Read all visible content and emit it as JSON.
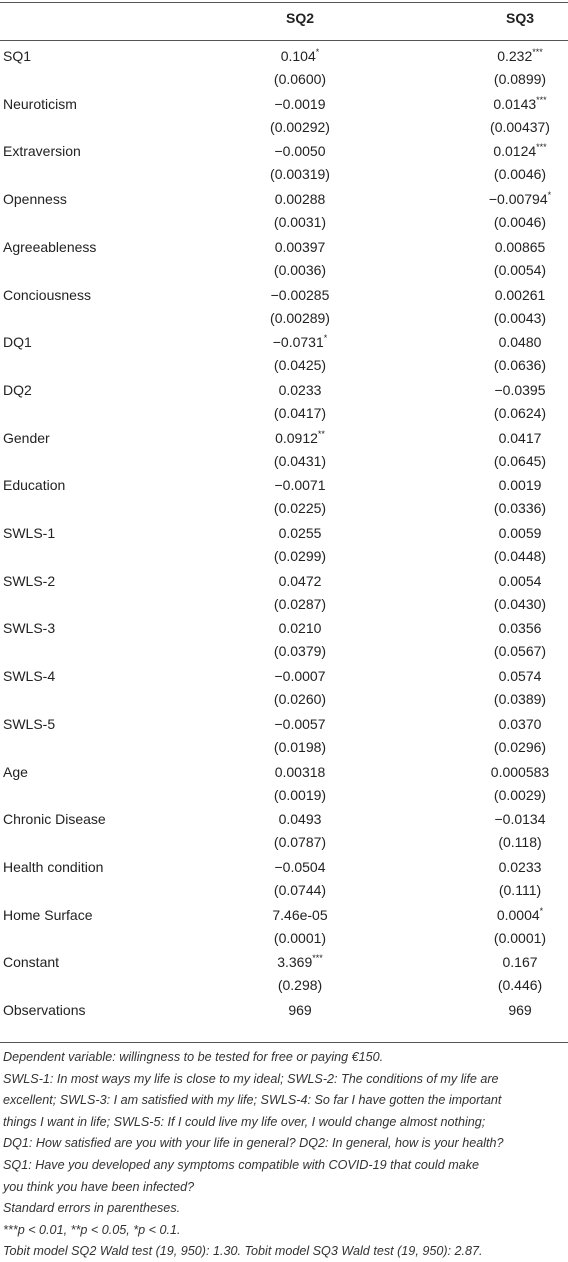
{
  "table": {
    "columns": [
      "SQ2",
      "SQ3"
    ],
    "rows": [
      {
        "label": "SQ1",
        "sq2": {
          "coef": "0.104",
          "stars": "*",
          "se": "(0.0600)"
        },
        "sq3": {
          "coef": "0.232",
          "stars": "***",
          "se": "(0.0899)"
        }
      },
      {
        "label": "Neuroticism",
        "sq2": {
          "coef": "−0.0019",
          "se": "(0.00292)"
        },
        "sq3": {
          "coef": "0.0143",
          "stars": "***",
          "se": "(0.00437)"
        }
      },
      {
        "label": "Extraversion",
        "sq2": {
          "coef": "−0.0050",
          "se": "(0.00319)"
        },
        "sq3": {
          "coef": "0.0124",
          "stars": "***",
          "se": "(0.0046)"
        }
      },
      {
        "label": "Openness",
        "sq2": {
          "coef": "0.00288",
          "se": "(0.0031)"
        },
        "sq3": {
          "coef": "−0.00794",
          "stars": "*",
          "se": "(0.0046)"
        }
      },
      {
        "label": "Agreeableness",
        "sq2": {
          "coef": "0.00397",
          "se": "(0.0036)"
        },
        "sq3": {
          "coef": "0.00865",
          "se": "(0.0054)"
        }
      },
      {
        "label": "Conciousness",
        "sq2": {
          "coef": "−0.00285",
          "se": "(0.00289)"
        },
        "sq3": {
          "coef": "0.00261",
          "se": "(0.0043)"
        }
      },
      {
        "label": "DQ1",
        "sq2": {
          "coef": "−0.0731",
          "stars": "*",
          "se": "(0.0425)"
        },
        "sq3": {
          "coef": "0.0480",
          "se": "(0.0636)"
        }
      },
      {
        "label": "DQ2",
        "sq2": {
          "coef": "0.0233",
          "se": "(0.0417)"
        },
        "sq3": {
          "coef": "−0.0395",
          "se": "(0.0624)"
        }
      },
      {
        "label": "Gender",
        "sq2": {
          "coef": "0.0912",
          "stars": "**",
          "se": "(0.0431)"
        },
        "sq3": {
          "coef": "0.0417",
          "se": "(0.0645)"
        }
      },
      {
        "label": "Education",
        "sq2": {
          "coef": "−0.0071",
          "se": "(0.0225)"
        },
        "sq3": {
          "coef": "0.0019",
          "se": "(0.0336)"
        }
      },
      {
        "label": "SWLS-1",
        "sq2": {
          "coef": "0.0255",
          "se": "(0.0299)"
        },
        "sq3": {
          "coef": "0.0059",
          "se": "(0.0448)"
        }
      },
      {
        "label": "SWLS-2",
        "sq2": {
          "coef": "0.0472",
          "se": "(0.0287)"
        },
        "sq3": {
          "coef": "0.0054",
          "se": "(0.0430)"
        }
      },
      {
        "label": "SWLS-3",
        "sq2": {
          "coef": "0.0210",
          "se": "(0.0379)"
        },
        "sq3": {
          "coef": "0.0356",
          "se": "(0.0567)"
        }
      },
      {
        "label": "SWLS-4",
        "sq2": {
          "coef": "−0.0007",
          "se": "(0.0260)"
        },
        "sq3": {
          "coef": "0.0574",
          "se": "(0.0389)"
        }
      },
      {
        "label": "SWLS-5",
        "sq2": {
          "coef": "−0.0057",
          "se": "(0.0198)"
        },
        "sq3": {
          "coef": "0.0370",
          "se": "(0.0296)"
        }
      },
      {
        "label": "Age",
        "sq2": {
          "coef": "0.00318",
          "se": "(0.0019)"
        },
        "sq3": {
          "coef": "0.000583",
          "se": "(0.0029)"
        }
      },
      {
        "label": "Chronic Disease",
        "sq2": {
          "coef": "0.0493",
          "se": "(0.0787)"
        },
        "sq3": {
          "coef": "−0.0134",
          "se": "(0.118)"
        }
      },
      {
        "label": "Health condition",
        "sq2": {
          "coef": "−0.0504",
          "se": "(0.0744)"
        },
        "sq3": {
          "coef": "0.0233",
          "se": "(0.111)"
        }
      },
      {
        "label": "Home Surface",
        "sq2": {
          "coef": "7.46e-05",
          "se": "(0.0001)"
        },
        "sq3": {
          "coef": "0.0004",
          "stars": "*",
          "se": "(0.0001)"
        }
      },
      {
        "label": "Constant",
        "sq2": {
          "coef": "3.369",
          "stars": "***",
          "se": "(0.298)"
        },
        "sq3": {
          "coef": "0.167",
          "se": "(0.446)"
        }
      },
      {
        "label": "Observations",
        "sq2": {
          "coef": "969"
        },
        "sq3": {
          "coef": "969"
        }
      }
    ]
  },
  "notes": [
    "Dependent variable: willingness to be tested for free or paying €150.",
    "SWLS-1: In most ways my life is close to my ideal; SWLS-2: The conditions of my life are",
    "excellent; SWLS-3: I am satisfied with my life; SWLS-4: So far I have gotten the important",
    "things I want in life; SWLS-5: If I could live my life over, I would change almost nothing;",
    "DQ1: How satisfied are you with your life in general? DQ2: In general, how is your health?",
    "SQ1: Have you developed any symptoms compatible with COVID-19 that could make",
    "you think you have been infected?",
    "Standard errors in parentheses.",
    "***p < 0.01, **p < 0.05, *p < 0.1.",
    "Tobit model SQ2 Wald test (19, 950): 1.30. Tobit model SQ3 Wald test (19, 950): 2.87."
  ]
}
